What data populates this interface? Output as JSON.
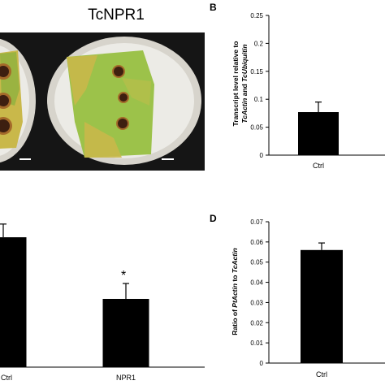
{
  "photo_panel": {
    "title": "TcNPR1"
  },
  "colors": {
    "bar": "#000000",
    "photo_background": "#151515",
    "dish_rim": "#d7d4cc",
    "dish_inner": "#ecebe6",
    "leaf_green": "#9cc24a",
    "leaf_yellow": "#c9b84a",
    "lesion": "#3d1f10",
    "lesion_halo": "#a46a2a"
  },
  "panel_b": {
    "letter": "B",
    "ylabel_line1_a": "Transcript level relative to",
    "ylabel_line2_a": "TcActin",
    "ylabel_line2_b": " and ",
    "ylabel_line2_c": "TcUbiquitin"
  },
  "panel_c": {
    "significance": "*"
  },
  "panel_d": {
    "letter": "D",
    "ylabel_a": "Ratio of ",
    "ylabel_b": "PtActin",
    "ylabel_c": " to ",
    "ylabel_d": "TcActin"
  },
  "chart_data": [
    {
      "panel": "B",
      "type": "bar",
      "categories": [
        "Ctrl"
      ],
      "values": [
        0.077
      ],
      "errors": [
        0.018
      ],
      "ylim": [
        0,
        0.25
      ],
      "yticks": [
        0,
        0.05,
        0.1,
        0.15,
        0.2,
        0.25
      ],
      "ytick_labels": [
        "0",
        "0.05",
        "0.1",
        "0.15",
        "0.2",
        "0.25"
      ],
      "ylabel": "Transcript level relative to TcActin and TcUbiquitin"
    },
    {
      "panel": "C",
      "type": "bar",
      "categories": [
        "Ctrl",
        "NPR1"
      ],
      "values": [
        0.59,
        0.31
      ],
      "errors": [
        0.06,
        0.07
      ],
      "significance": [
        "",
        "*"
      ]
    },
    {
      "panel": "D",
      "type": "bar",
      "categories": [
        "Ctrl"
      ],
      "values": [
        0.056
      ],
      "errors": [
        0.0035
      ],
      "ylim": [
        0,
        0.07
      ],
      "yticks": [
        0,
        0.01,
        0.02,
        0.03,
        0.04,
        0.05,
        0.06,
        0.07
      ],
      "ytick_labels": [
        "0",
        "0.01",
        "0.02",
        "0.03",
        "0.04",
        "0.05",
        "0.06",
        "0.07"
      ],
      "ylabel": "Ratio of PtActin to TcActin"
    }
  ]
}
